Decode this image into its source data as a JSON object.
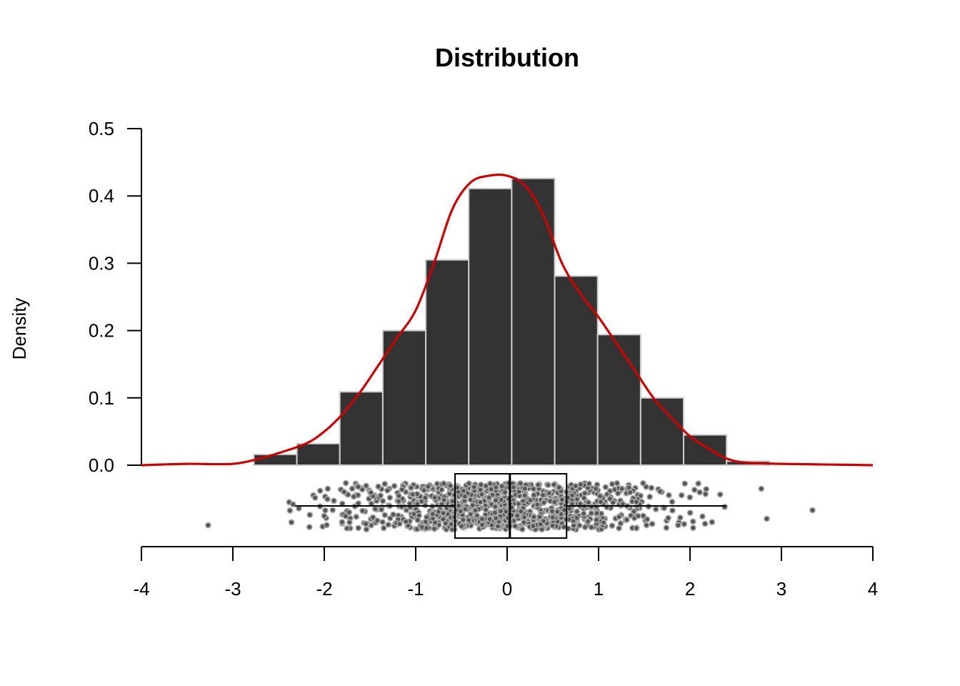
{
  "chart_data": {
    "type": "histogram",
    "title": "Distribution",
    "xlabel": "",
    "ylabel": "Density",
    "xlim": [
      -4,
      4
    ],
    "ylim": [
      0,
      0.5
    ],
    "x_ticks": [
      "-4",
      "-3",
      "-2",
      "-1",
      "0",
      "1",
      "2",
      "3",
      "4"
    ],
    "y_ticks": [
      "0.0",
      "0.1",
      "0.2",
      "0.3",
      "0.4",
      "0.5"
    ],
    "grid": false,
    "legend": "none",
    "histogram": {
      "bin_edges": [
        -2.77,
        -2.3,
        -1.83,
        -1.36,
        -0.89,
        -0.42,
        0.05,
        0.52,
        0.99,
        1.46,
        1.93,
        2.4,
        2.87
      ],
      "density": [
        0.016,
        0.032,
        0.109,
        0.2,
        0.305,
        0.411,
        0.426,
        0.281,
        0.194,
        0.1,
        0.045,
        0.006
      ],
      "fill_color": "#333333",
      "edge_color": "#cccccc"
    },
    "density_curve": {
      "color": "#cc0000",
      "x": [
        -4.0,
        -3.5,
        -3.0,
        -2.7,
        -2.5,
        -2.2,
        -2.0,
        -1.8,
        -1.6,
        -1.4,
        -1.2,
        -1.0,
        -0.8,
        -0.6,
        -0.4,
        -0.2,
        0.0,
        0.2,
        0.4,
        0.6,
        0.8,
        1.0,
        1.2,
        1.4,
        1.6,
        1.8,
        2.0,
        2.2,
        2.4,
        2.6,
        3.0,
        3.5,
        4.0
      ],
      "y": [
        0.0,
        0.002,
        0.002,
        0.01,
        0.018,
        0.032,
        0.05,
        0.076,
        0.11,
        0.15,
        0.19,
        0.23,
        0.3,
        0.38,
        0.42,
        0.43,
        0.43,
        0.415,
        0.37,
        0.3,
        0.255,
        0.22,
        0.18,
        0.14,
        0.1,
        0.07,
        0.043,
        0.025,
        0.01,
        0.004,
        0.002,
        0.001,
        0.0
      ]
    },
    "boxplot": {
      "whisker_low": -2.32,
      "q1": -0.57,
      "median": 0.03,
      "q3": 0.65,
      "whisker_high": 2.4,
      "outliers": [
        -3.27,
        2.78,
        2.84,
        3.34
      ]
    },
    "jitter_points": {
      "n": 1000,
      "fill_color": "#555555",
      "edge_color": "#aaaaaa"
    }
  }
}
